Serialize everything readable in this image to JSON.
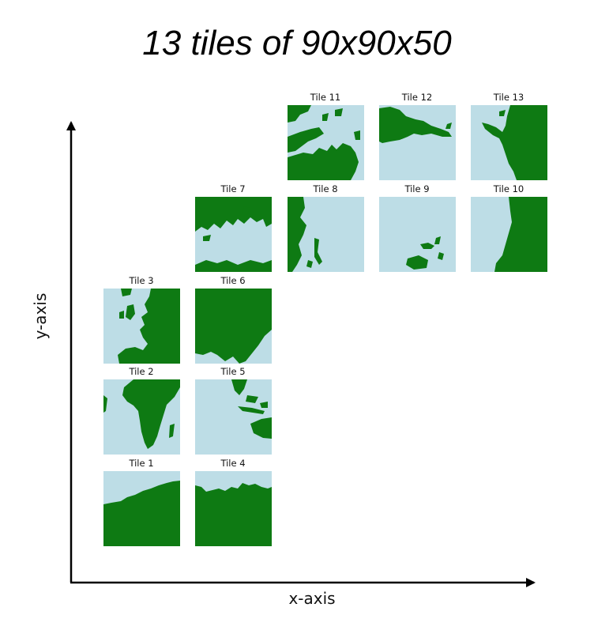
{
  "title": "13 tiles of 90x90x50",
  "axes": {
    "x_label": "x-axis",
    "y_label": "y-axis"
  },
  "colors": {
    "land": "#0e7a13",
    "water": "#bddde6",
    "axis": "#000000"
  },
  "tiles": [
    {
      "label": "Tile 1"
    },
    {
      "label": "Tile 2"
    },
    {
      "label": "Tile 3"
    },
    {
      "label": "Tile 4"
    },
    {
      "label": "Tile 5"
    },
    {
      "label": "Tile 6"
    },
    {
      "label": "Tile 7"
    },
    {
      "label": "Tile 8"
    },
    {
      "label": "Tile 9"
    },
    {
      "label": "Tile 10"
    },
    {
      "label": "Tile 11"
    },
    {
      "label": "Tile 12"
    },
    {
      "label": "Tile 13"
    }
  ]
}
